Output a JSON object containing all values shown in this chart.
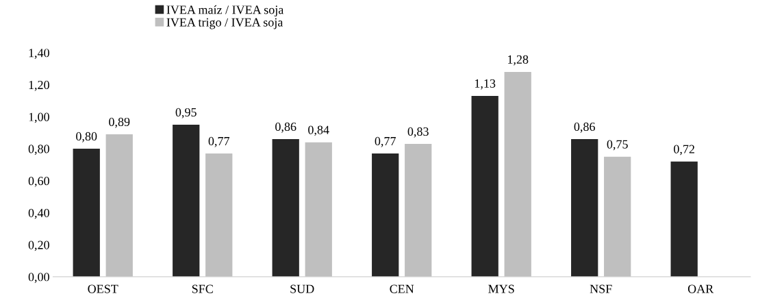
{
  "chart_data": {
    "type": "bar",
    "categories": [
      "OEST",
      "SFC",
      "SUD",
      "CEN",
      "MYS",
      "NSF",
      "OAR"
    ],
    "series": [
      {
        "name": "IVEA maíz / IVEA soja",
        "color": "#262626",
        "values": [
          0.8,
          0.95,
          0.86,
          0.77,
          1.13,
          0.86,
          0.72
        ],
        "value_labels": [
          "0,80",
          "0,95",
          "0,86",
          "0,77",
          "1,13",
          "0,86",
          "0,72"
        ]
      },
      {
        "name": "IVEA trigo / IVEA soja",
        "color": "#bfbfbf",
        "values": [
          0.89,
          0.77,
          0.84,
          0.83,
          1.28,
          0.75,
          null
        ],
        "value_labels": [
          "0,89",
          "0,77",
          "0,84",
          "0,83",
          "1,28",
          "0,75",
          null
        ]
      }
    ],
    "ylim": [
      0,
      1.4
    ],
    "yticks": [
      {
        "value": 0,
        "label": "0,00"
      },
      {
        "value": 0.2,
        "label": "0,20"
      },
      {
        "value": 0.4,
        "label": "0,40"
      },
      {
        "value": 0.6,
        "label": "0,60"
      },
      {
        "value": 0.8,
        "label": "0,80"
      },
      {
        "value": 1.0,
        "label": "1,00"
      },
      {
        "value": 1.2,
        "label": "1,20"
      },
      {
        "value": 1.4,
        "label": "1,40"
      }
    ],
    "grid": false,
    "legend": "top left"
  }
}
